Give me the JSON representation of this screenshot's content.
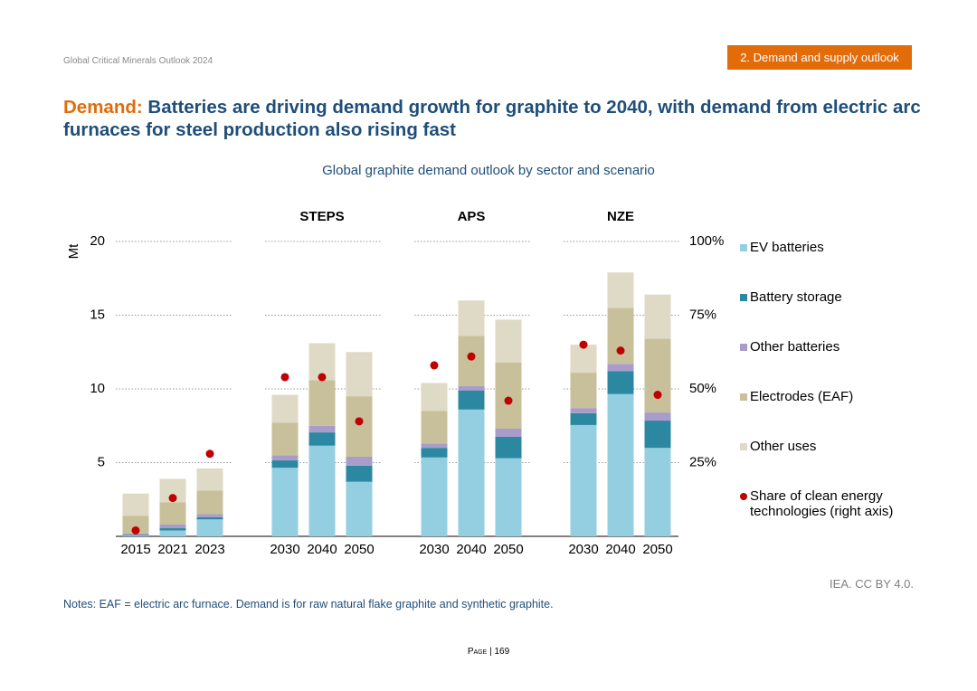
{
  "header": {
    "report": "Global Critical Minerals Outlook 2024",
    "section": "2. Demand and supply outlook"
  },
  "title": {
    "lead": "Demand:",
    "text": "Batteries are driving demand growth for graphite to 2040, with demand from electric arc furnaces for steel production also rising fast"
  },
  "chart_data": {
    "type": "stacked_bar",
    "title": "Global graphite demand outlook by sector and scenario",
    "y_label": "Mt",
    "groups": [
      null,
      "STEPS",
      "APS",
      "NZE"
    ],
    "categories": [
      [
        "2015",
        "2021",
        "2023"
      ],
      [
        "2030",
        "2040",
        "2050"
      ],
      [
        "2030",
        "2040",
        "2050"
      ],
      [
        "2030",
        "2040",
        "2050"
      ]
    ],
    "series": [
      {
        "name": "EV batteries",
        "color": "#93cfe0",
        "values": [
          [
            0.05,
            0.4,
            1.15
          ],
          [
            4.65,
            6.15,
            3.7
          ],
          [
            5.35,
            8.6,
            5.3
          ],
          [
            7.55,
            9.65,
            6.0
          ]
        ]
      },
      {
        "name": "Battery storage",
        "color": "#2b88a0",
        "values": [
          [
            0.05,
            0.15,
            0.15
          ],
          [
            0.5,
            0.9,
            1.1
          ],
          [
            0.65,
            1.3,
            1.45
          ],
          [
            0.8,
            1.55,
            1.85
          ]
        ]
      },
      {
        "name": "Other batteries",
        "color": "#a99cca",
        "values": [
          [
            0.1,
            0.25,
            0.2
          ],
          [
            0.35,
            0.45,
            0.6
          ],
          [
            0.3,
            0.3,
            0.55
          ],
          [
            0.35,
            0.5,
            0.55
          ]
        ]
      },
      {
        "name": "Electrodes (EAF)",
        "color": "#c7c09a",
        "values": [
          [
            1.2,
            1.5,
            1.6
          ],
          [
            2.2,
            3.1,
            4.1
          ],
          [
            2.2,
            3.4,
            4.5
          ],
          [
            2.4,
            3.8,
            5.0
          ]
        ]
      },
      {
        "name": "Other uses",
        "color": "#dedac6",
        "values": [
          [
            1.5,
            1.6,
            1.5
          ],
          [
            1.9,
            2.5,
            3.0
          ],
          [
            1.9,
            2.4,
            2.9
          ],
          [
            1.9,
            2.4,
            3.0
          ]
        ]
      },
      {
        "name": "Share of clean energy technologies (right axis)",
        "color": "#c00000",
        "type": "scatter",
        "axis": "y2",
        "values": [
          [
            2,
            13,
            28
          ],
          [
            54,
            54,
            39
          ],
          [
            58,
            61,
            46
          ],
          [
            65,
            63,
            48
          ]
        ]
      }
    ],
    "ylim": [
      0,
      20
    ],
    "yticks": [
      5,
      10,
      15,
      20
    ],
    "y2lim": [
      0,
      100
    ],
    "y2ticks": [
      {
        "value": 25,
        "label": "25%"
      },
      {
        "value": 50,
        "label": "50%"
      },
      {
        "value": 75,
        "label": "75%"
      },
      {
        "value": 100,
        "label": "100%"
      }
    ],
    "grid": true,
    "legend": "right"
  },
  "source": "IEA. CC BY 4.0.",
  "notes": "Notes: EAF = electric arc furnace. Demand is for raw natural flake graphite and synthetic graphite.",
  "page": "Page | 169"
}
